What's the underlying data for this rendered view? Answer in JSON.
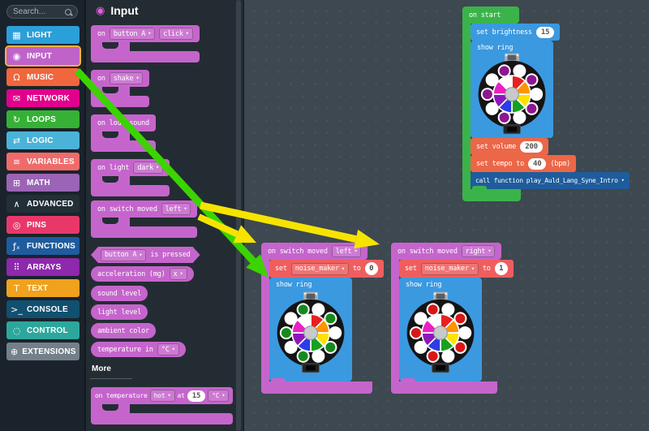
{
  "ui": {
    "caret": "▾"
  },
  "colors": {
    "input_block": "#c565cc",
    "light_block": "#3b99e0",
    "music_block": "#eb6747",
    "function_block": "#1e5c9c",
    "variable_block": "#ef5e5e",
    "start_block": "#3ab44a",
    "arrow_yellow": "#f6e400",
    "arrow_green": "#3bd400",
    "selection_highlight": "#ffb335",
    "workspace_bg": "#3e4850",
    "flyout_bg": "#242c33",
    "sidebar_bg": "#1a232b"
  },
  "sidebar": {
    "search": {
      "placeholder": "Search..."
    },
    "categories": [
      {
        "label": "LIGHT",
        "color": "#2b9fd8",
        "icon": "▦"
      },
      {
        "label": "INPUT",
        "color": "#bf63c9",
        "icon": "◉",
        "selected": true
      },
      {
        "label": "MUSIC",
        "color": "#f0663d",
        "icon": "Ω"
      },
      {
        "label": "NETWORK",
        "color": "#e1008c",
        "icon": "✉"
      },
      {
        "label": "LOOPS",
        "color": "#35b135",
        "icon": "↻"
      },
      {
        "label": "LOGIC",
        "color": "#4bb3d8",
        "icon": "⇄"
      },
      {
        "label": "VARIABLES",
        "color": "#ef6b6b",
        "icon": "≡"
      },
      {
        "label": "MATH",
        "color": "#9b64b6",
        "icon": "⊞"
      },
      {
        "label": "ADVANCED",
        "color": "#232f36",
        "icon": "∧"
      },
      {
        "label": "PINS",
        "color": "#e8386a",
        "icon": "◎"
      },
      {
        "label": "FUNCTIONS",
        "color": "#1e5c9e",
        "icon": "ƒₓ"
      },
      {
        "label": "ARRAYS",
        "color": "#8e28ac",
        "icon": "⠿"
      },
      {
        "label": "TEXT",
        "color": "#f0a11d",
        "icon": "T"
      },
      {
        "label": "CONSOLE",
        "color": "#125070",
        "icon": ">_"
      },
      {
        "label": "CONTROL",
        "color": "#2da79c",
        "icon": "◌"
      },
      {
        "label": "EXTENSIONS",
        "color": "#73808a",
        "icon": "⊕"
      }
    ]
  },
  "flyout": {
    "icon_char": "◉",
    "title": "Input",
    "more_label": "More",
    "blocks": {
      "on_button": {
        "label": "on",
        "field1": "button A",
        "field2": "click"
      },
      "on_shake": {
        "label": "on",
        "field1": "shake"
      },
      "on_loud": {
        "label": "on loud sound"
      },
      "on_light": {
        "label": "on light",
        "field1": "dark"
      },
      "on_switch": {
        "label": "on switch moved",
        "field1": "left"
      },
      "is_pressed": {
        "field1": "button A",
        "label": "is pressed"
      },
      "acceleration": {
        "label": "acceleration (mg)",
        "field1": "x"
      },
      "sound_level": {
        "label": "sound level"
      },
      "light_level": {
        "label": "light level"
      },
      "ambient_color": {
        "label": "ambient color"
      },
      "temperature_in": {
        "label": "temperature in",
        "field1": "°C"
      },
      "on_temperature": {
        "label": "on temperature",
        "field1": "hot",
        "at": "at",
        "value": "15",
        "field2": "°C"
      }
    }
  },
  "workspace": {
    "on_start": {
      "header": "on start",
      "set_brightness": {
        "label": "set brightness",
        "value": "15"
      },
      "show_ring_label": "show ring",
      "set_volume": {
        "label": "set volume",
        "value": "200"
      },
      "set_tempo": {
        "label": "set tempo to",
        "value": "40",
        "suffix": "(bpm)"
      },
      "call_function": {
        "label": "call function",
        "field": "play_Auld_Lang_Syne_Intro"
      }
    },
    "switch_left": {
      "header": "on switch moved",
      "field1": "left",
      "set_var": {
        "label": "set",
        "field": "noise_maker",
        "to": "to",
        "value": "0"
      },
      "show_ring_label": "show ring"
    },
    "switch_right": {
      "header": "on switch moved",
      "field1": "right",
      "set_var": {
        "label": "set",
        "field": "noise_maker",
        "to": "to",
        "value": "1"
      },
      "show_ring_label": "show ring"
    }
  },
  "boards": {
    "board_color": "#141414",
    "hub_color": "#c7c9cb",
    "wheel_colors": [
      "#e82020",
      "#ff9400",
      "#ffe100",
      "#17a11f",
      "#2b3ce8",
      "#8d17b8",
      "#e821c4",
      "#ffffff"
    ],
    "pixel_pattern": [
      "white",
      "alt",
      "white",
      "alt",
      "white",
      "alt",
      "white",
      "alt",
      "white",
      "alt"
    ],
    "rings": {
      "on_start": {
        "alt": "#8e1691"
      },
      "switch_left": {
        "alt": "#17891c"
      },
      "switch_right": {
        "alt": "#d91717"
      }
    }
  }
}
